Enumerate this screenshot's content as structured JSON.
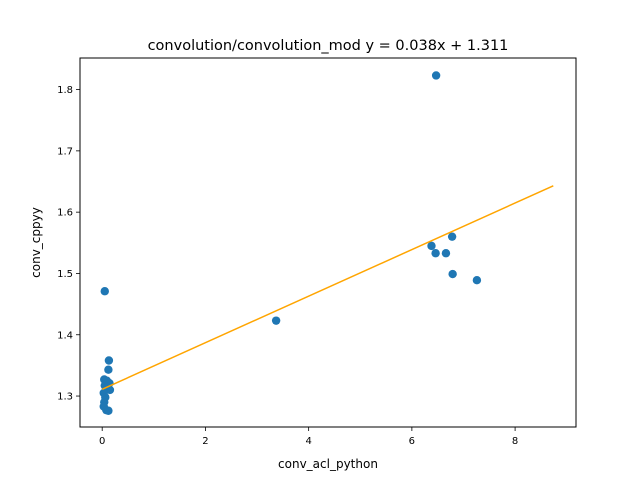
{
  "chart_data": {
    "type": "scatter",
    "title": "convolution/convolution_mod y = 0.038x + 1.311",
    "xlabel": "conv_acl_python",
    "ylabel": "conv_cppyy",
    "xlim": [
      -0.43,
      9.18
    ],
    "ylim": [
      1.2495,
      1.8515
    ],
    "xticks": [
      0,
      2,
      4,
      6,
      8
    ],
    "xtick_labels": [
      "0",
      "2",
      "4",
      "6",
      "8"
    ],
    "yticks": [
      1.3,
      1.4,
      1.5,
      1.6,
      1.7,
      1.8
    ],
    "ytick_labels": [
      "1.3",
      "1.4",
      "1.5",
      "1.6",
      "1.7",
      "1.8"
    ],
    "grid": false,
    "series": [
      {
        "kind": "points",
        "color": "#1f77b4",
        "points": [
          {
            "x": 0.05,
            "y": 1.471
          },
          {
            "x": 0.13,
            "y": 1.358
          },
          {
            "x": 0.12,
            "y": 1.343
          },
          {
            "x": 0.04,
            "y": 1.327
          },
          {
            "x": 0.09,
            "y": 1.325
          },
          {
            "x": 0.14,
            "y": 1.321
          },
          {
            "x": 0.05,
            "y": 1.317
          },
          {
            "x": 0.1,
            "y": 1.314
          },
          {
            "x": 0.15,
            "y": 1.31
          },
          {
            "x": 0.03,
            "y": 1.305
          },
          {
            "x": 0.06,
            "y": 1.298
          },
          {
            "x": 0.04,
            "y": 1.29
          },
          {
            "x": 0.03,
            "y": 1.283
          },
          {
            "x": 0.08,
            "y": 1.277
          },
          {
            "x": 0.12,
            "y": 1.276
          },
          {
            "x": 3.37,
            "y": 1.423
          },
          {
            "x": 6.38,
            "y": 1.545
          },
          {
            "x": 6.46,
            "y": 1.533
          },
          {
            "x": 6.66,
            "y": 1.533
          },
          {
            "x": 6.78,
            "y": 1.56
          },
          {
            "x": 6.79,
            "y": 1.499
          },
          {
            "x": 7.26,
            "y": 1.489
          },
          {
            "x": 6.47,
            "y": 1.823
          }
        ]
      },
      {
        "kind": "fit-line",
        "color": "#ffa500",
        "x": [
          0.0,
          8.74
        ],
        "y": [
          1.311,
          1.643
        ]
      }
    ]
  }
}
